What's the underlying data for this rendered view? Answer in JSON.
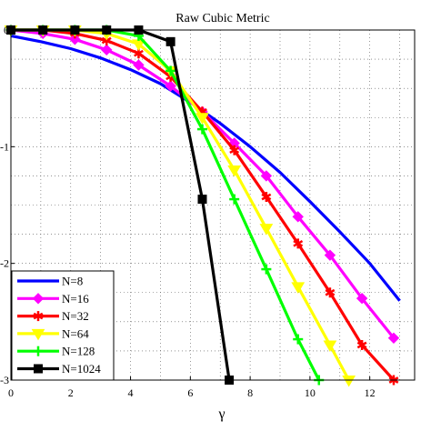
{
  "chart_data": {
    "type": "line",
    "title": "Raw Cubic Metric",
    "xlabel": "γ",
    "ylabel": "",
    "xlim": [
      0,
      13.5
    ],
    "ylim": [
      -3,
      0
    ],
    "x_ticks": [
      0,
      2,
      4,
      6,
      8,
      10,
      12
    ],
    "x_tick_labels": [
      "0",
      "2",
      "4",
      "6",
      "8",
      "10",
      "12"
    ],
    "y_ticks": [
      0,
      -1,
      -2,
      -3
    ],
    "y_tick_labels": [
      "0",
      "-1",
      "-2",
      "-3"
    ],
    "grid": true,
    "legend_position": "bottom-left",
    "series": [
      {
        "name": "N=8",
        "color": "#0000ff",
        "marker": "none",
        "x": [
          0,
          1,
          2,
          3,
          4,
          5,
          6,
          7,
          8,
          9,
          10,
          11,
          12,
          13
        ],
        "y": [
          -0.05,
          -0.1,
          -0.16,
          -0.24,
          -0.34,
          -0.46,
          -0.62,
          -0.8,
          -1.0,
          -1.22,
          -1.47,
          -1.73,
          -2.0,
          -2.32
        ]
      },
      {
        "name": "N=16",
        "color": "#ff00ff",
        "marker": "diamond",
        "x": [
          0,
          1.07,
          2.14,
          3.2,
          4.27,
          5.34,
          6.4,
          7.47,
          8.54,
          9.6,
          10.67,
          11.74,
          12.8
        ],
        "y": [
          0,
          -0.03,
          -0.08,
          -0.17,
          -0.3,
          -0.48,
          -0.7,
          -0.97,
          -1.25,
          -1.6,
          -1.93,
          -2.3,
          -2.64
        ]
      },
      {
        "name": "N=32",
        "color": "#ff0000",
        "marker": "star",
        "x": [
          0,
          1.07,
          2.14,
          3.2,
          4.27,
          5.34,
          6.4,
          7.47,
          8.54,
          9.6,
          10.67,
          11.74,
          12.8
        ],
        "y": [
          0,
          0,
          -0.03,
          -0.09,
          -0.2,
          -0.4,
          -0.7,
          -1.03,
          -1.43,
          -1.83,
          -2.25,
          -2.7,
          -3.0
        ]
      },
      {
        "name": "N=64",
        "color": "#ffff00",
        "marker": "triangle-down",
        "x": [
          0,
          1.07,
          2.14,
          3.2,
          4.27,
          5.34,
          6.4,
          7.47,
          8.54,
          9.6,
          10.67,
          11.3
        ],
        "y": [
          0,
          0,
          0,
          -0.03,
          -0.12,
          -0.35,
          -0.75,
          -1.2,
          -1.7,
          -2.2,
          -2.7,
          -3.0
        ]
      },
      {
        "name": "N=128",
        "color": "#00ff00",
        "marker": "plus",
        "x": [
          0,
          1.07,
          2.14,
          3.2,
          4.27,
          5.34,
          6.4,
          7.47,
          8.54,
          9.6,
          10.3
        ],
        "y": [
          0,
          0,
          0,
          0,
          -0.05,
          -0.35,
          -0.85,
          -1.45,
          -2.05,
          -2.65,
          -3.0
        ]
      },
      {
        "name": "N=1024",
        "color": "#000000",
        "marker": "square",
        "x": [
          0,
          1.07,
          2.14,
          3.2,
          4.27,
          5.34,
          6.4,
          7.3
        ],
        "y": [
          0,
          0,
          0,
          0,
          0,
          -0.1,
          -1.45,
          -3.0
        ]
      }
    ]
  }
}
